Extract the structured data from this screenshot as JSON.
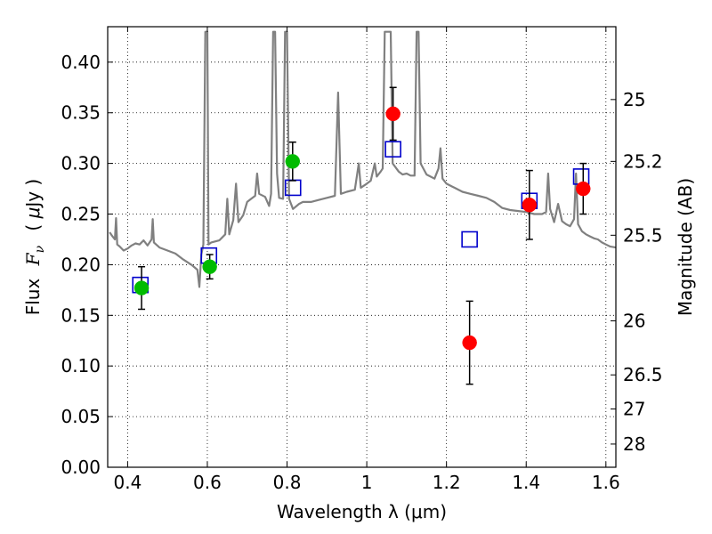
{
  "chart_data": {
    "type": "scatter",
    "xlabel": "Wavelength  λ (μm)",
    "ylabel_parts": {
      "flux": "Flux",
      "f": "F",
      "nu": "ν",
      "open": "( ",
      "mu": "μ",
      "unit": "Jy )"
    },
    "y2label": "Magnitude (AB)",
    "xlim": [
      0.35,
      1.625
    ],
    "ylim": [
      0.0,
      0.435
    ],
    "grid": true,
    "x_ticks": [
      {
        "v": 0.4,
        "label": "0.4"
      },
      {
        "v": 0.6,
        "label": "0.6"
      },
      {
        "v": 0.8,
        "label": "0.8"
      },
      {
        "v": 1.0,
        "label": "1"
      },
      {
        "v": 1.2,
        "label": "1.2"
      },
      {
        "v": 1.4,
        "label": "1.4"
      },
      {
        "v": 1.6,
        "label": "1.6"
      }
    ],
    "y_ticks": [
      {
        "v": 0.0,
        "label": "0.00"
      },
      {
        "v": 0.05,
        "label": "0.05"
      },
      {
        "v": 0.1,
        "label": "0.10"
      },
      {
        "v": 0.15,
        "label": "0.15"
      },
      {
        "v": 0.2,
        "label": "0.20"
      },
      {
        "v": 0.25,
        "label": "0.25"
      },
      {
        "v": 0.3,
        "label": "0.30"
      },
      {
        "v": 0.35,
        "label": "0.35"
      },
      {
        "v": 0.4,
        "label": "0.40"
      }
    ],
    "y2_ticks": [
      {
        "mag": 25,
        "label": "25"
      },
      {
        "mag": 25.2,
        "label": "25.2"
      },
      {
        "mag": 25.5,
        "label": "25.5"
      },
      {
        "mag": 26,
        "label": "26"
      },
      {
        "mag": 26.5,
        "label": "26.5"
      },
      {
        "mag": 27,
        "label": "27"
      },
      {
        "mag": 28,
        "label": "28"
      }
    ],
    "colors": {
      "spectrum": "#808080",
      "model": "#0000cc",
      "green": "#00bb00",
      "red": "#ff0000",
      "error": "#000000"
    },
    "spectrum": [
      [
        0.355,
        0.232
      ],
      [
        0.362,
        0.228
      ],
      [
        0.368,
        0.225
      ],
      [
        0.371,
        0.246
      ],
      [
        0.374,
        0.22
      ],
      [
        0.38,
        0.218
      ],
      [
        0.39,
        0.214
      ],
      [
        0.4,
        0.216
      ],
      [
        0.41,
        0.219
      ],
      [
        0.42,
        0.221
      ],
      [
        0.43,
        0.22
      ],
      [
        0.44,
        0.224
      ],
      [
        0.45,
        0.219
      ],
      [
        0.46,
        0.225
      ],
      [
        0.463,
        0.245
      ],
      [
        0.466,
        0.222
      ],
      [
        0.48,
        0.217
      ],
      [
        0.5,
        0.214
      ],
      [
        0.52,
        0.211
      ],
      [
        0.54,
        0.205
      ],
      [
        0.56,
        0.2
      ],
      [
        0.575,
        0.195
      ],
      [
        0.58,
        0.178
      ],
      [
        0.585,
        0.21
      ],
      [
        0.59,
        0.22
      ],
      [
        0.595,
        0.43
      ],
      [
        0.6,
        0.43
      ],
      [
        0.603,
        0.22
      ],
      [
        0.61,
        0.222
      ],
      [
        0.63,
        0.224
      ],
      [
        0.645,
        0.23
      ],
      [
        0.65,
        0.265
      ],
      [
        0.655,
        0.23
      ],
      [
        0.665,
        0.244
      ],
      [
        0.672,
        0.28
      ],
      [
        0.678,
        0.242
      ],
      [
        0.69,
        0.249
      ],
      [
        0.7,
        0.262
      ],
      [
        0.71,
        0.265
      ],
      [
        0.72,
        0.268
      ],
      [
        0.725,
        0.29
      ],
      [
        0.73,
        0.27
      ],
      [
        0.745,
        0.267
      ],
      [
        0.755,
        0.258
      ],
      [
        0.76,
        0.27
      ],
      [
        0.765,
        0.43
      ],
      [
        0.77,
        0.43
      ],
      [
        0.775,
        0.29
      ],
      [
        0.78,
        0.266
      ],
      [
        0.79,
        0.265
      ],
      [
        0.795,
        0.43
      ],
      [
        0.8,
        0.43
      ],
      [
        0.805,
        0.265
      ],
      [
        0.815,
        0.255
      ],
      [
        0.83,
        0.26
      ],
      [
        0.84,
        0.262
      ],
      [
        0.86,
        0.262
      ],
      [
        0.88,
        0.264
      ],
      [
        0.9,
        0.266
      ],
      [
        0.92,
        0.268
      ],
      [
        0.928,
        0.37
      ],
      [
        0.935,
        0.27
      ],
      [
        0.95,
        0.272
      ],
      [
        0.97,
        0.274
      ],
      [
        0.98,
        0.3
      ],
      [
        0.985,
        0.276
      ],
      [
        1.0,
        0.28
      ],
      [
        1.01,
        0.283
      ],
      [
        1.02,
        0.3
      ],
      [
        1.025,
        0.287
      ],
      [
        1.035,
        0.292
      ],
      [
        1.04,
        0.295
      ],
      [
        1.045,
        0.43
      ],
      [
        1.05,
        0.43
      ],
      [
        1.06,
        0.43
      ],
      [
        1.065,
        0.3
      ],
      [
        1.08,
        0.292
      ],
      [
        1.09,
        0.289
      ],
      [
        1.1,
        0.29
      ],
      [
        1.11,
        0.288
      ],
      [
        1.12,
        0.288
      ],
      [
        1.125,
        0.43
      ],
      [
        1.13,
        0.43
      ],
      [
        1.135,
        0.3
      ],
      [
        1.15,
        0.289
      ],
      [
        1.17,
        0.285
      ],
      [
        1.18,
        0.295
      ],
      [
        1.185,
        0.315
      ],
      [
        1.19,
        0.285
      ],
      [
        1.2,
        0.28
      ],
      [
        1.22,
        0.276
      ],
      [
        1.24,
        0.272
      ],
      [
        1.26,
        0.27
      ],
      [
        1.28,
        0.268
      ],
      [
        1.3,
        0.266
      ],
      [
        1.32,
        0.262
      ],
      [
        1.34,
        0.256
      ],
      [
        1.36,
        0.254
      ],
      [
        1.38,
        0.253
      ],
      [
        1.4,
        0.252
      ],
      [
        1.42,
        0.25
      ],
      [
        1.44,
        0.25
      ],
      [
        1.45,
        0.252
      ],
      [
        1.455,
        0.29
      ],
      [
        1.46,
        0.255
      ],
      [
        1.47,
        0.242
      ],
      [
        1.48,
        0.26
      ],
      [
        1.49,
        0.243
      ],
      [
        1.5,
        0.24
      ],
      [
        1.51,
        0.238
      ],
      [
        1.52,
        0.245
      ],
      [
        1.525,
        0.29
      ],
      [
        1.53,
        0.24
      ],
      [
        1.54,
        0.233
      ],
      [
        1.55,
        0.23
      ],
      [
        1.56,
        0.228
      ],
      [
        1.57,
        0.226
      ],
      [
        1.58,
        0.225
      ],
      [
        1.59,
        0.222
      ],
      [
        1.6,
        0.22
      ],
      [
        1.61,
        0.218
      ],
      [
        1.625,
        0.217
      ]
    ],
    "model_points": [
      {
        "x": 0.432,
        "y": 0.18
      },
      {
        "x": 0.604,
        "y": 0.209
      },
      {
        "x": 0.815,
        "y": 0.276
      },
      {
        "x": 1.066,
        "y": 0.314
      },
      {
        "x": 1.258,
        "y": 0.225
      },
      {
        "x": 1.408,
        "y": 0.263
      },
      {
        "x": 1.538,
        "y": 0.287
      }
    ],
    "observed_points": [
      {
        "x": 0.435,
        "y": 0.177,
        "err": 0.021,
        "color": "green"
      },
      {
        "x": 0.606,
        "y": 0.198,
        "err": 0.012,
        "color": "green"
      },
      {
        "x": 0.814,
        "y": 0.302,
        "err": 0.019,
        "color": "green"
      },
      {
        "x": 1.066,
        "y": 0.349,
        "err": 0.026,
        "color": "red"
      },
      {
        "x": 1.258,
        "y": 0.123,
        "err": 0.041,
        "color": "red"
      },
      {
        "x": 1.408,
        "y": 0.259,
        "err": 0.034,
        "color": "red"
      },
      {
        "x": 1.543,
        "y": 0.275,
        "err": 0.025,
        "color": "red"
      }
    ]
  }
}
